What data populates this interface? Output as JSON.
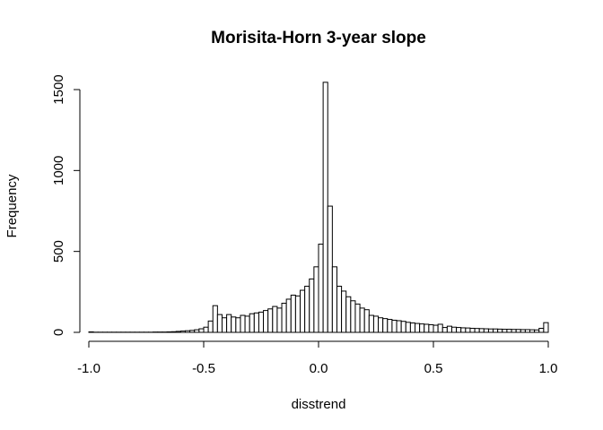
{
  "chart_data": {
    "type": "bar",
    "title": "Morisita-Horn 3-year slope",
    "xlabel": "disstrend",
    "ylabel": "Frequency",
    "xlim": [
      -1.0,
      1.0
    ],
    "ylim": [
      0,
      1550
    ],
    "x_ticks": [
      -1.0,
      -0.5,
      0.0,
      0.5,
      1.0
    ],
    "x_tick_labels": [
      "-1.0",
      "-0.5",
      "0.0",
      "0.5",
      "1.0"
    ],
    "y_ticks": [
      0,
      500,
      1000,
      1500
    ],
    "y_tick_labels": [
      "0",
      "500",
      "1000",
      "1500"
    ],
    "bin_width": 0.02,
    "bin_start": -1.0,
    "values": [
      3,
      1,
      1,
      1,
      1,
      1,
      1,
      1,
      1,
      1,
      1,
      1,
      1,
      1,
      2,
      2,
      2,
      3,
      4,
      6,
      8,
      10,
      12,
      16,
      22,
      32,
      70,
      165,
      110,
      90,
      110,
      95,
      90,
      105,
      100,
      115,
      120,
      125,
      135,
      145,
      160,
      150,
      180,
      205,
      230,
      225,
      260,
      285,
      330,
      405,
      545,
      1545,
      780,
      405,
      285,
      255,
      220,
      195,
      175,
      150,
      140,
      105,
      100,
      90,
      85,
      80,
      75,
      72,
      68,
      62,
      58,
      55,
      52,
      50,
      47,
      44,
      50,
      30,
      38,
      32,
      30,
      28,
      27,
      25,
      24,
      23,
      22,
      21,
      21,
      20,
      19,
      19,
      18,
      18,
      17,
      17,
      16,
      15,
      25,
      60
    ]
  }
}
